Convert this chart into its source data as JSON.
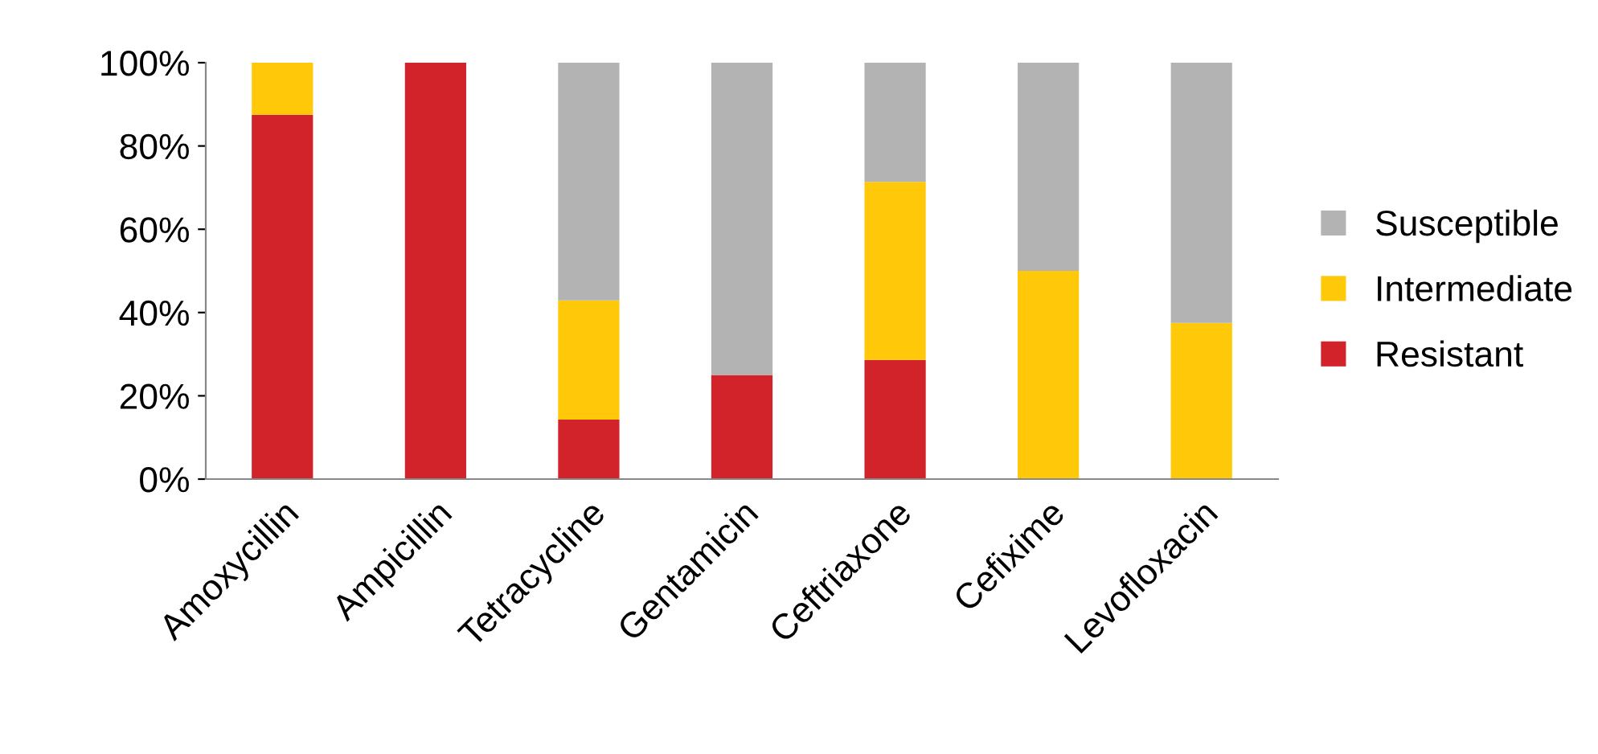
{
  "chart_data": {
    "type": "bar",
    "stacked": true,
    "categories": [
      "Amoxycillin",
      "Ampicillin",
      "Tetracycline",
      "Gentamicin",
      "Ceftriaxone",
      "Cefixime",
      "Levofloxacin"
    ],
    "series": [
      {
        "name": "Resistant",
        "color": "#d2232a",
        "values": [
          87.5,
          100,
          14.3,
          25,
          28.6,
          0,
          0
        ]
      },
      {
        "name": "Intermediate",
        "color": "#ffc90a",
        "values": [
          12.5,
          0,
          28.6,
          0,
          42.8,
          50,
          37.5
        ]
      },
      {
        "name": "Susceptible",
        "color": "#b3b3b3",
        "values": [
          0,
          0,
          57.1,
          75,
          28.6,
          50,
          62.5
        ]
      }
    ],
    "ylim": [
      0,
      100
    ],
    "yticks": [
      {
        "value": 0,
        "label": "0%"
      },
      {
        "value": 20,
        "label": "20%"
      },
      {
        "value": 40,
        "label": "40%"
      },
      {
        "value": 60,
        "label": "60%"
      },
      {
        "value": 80,
        "label": "80%"
      },
      {
        "value": 100,
        "label": "100%"
      }
    ],
    "grid": false,
    "legend": "right"
  }
}
